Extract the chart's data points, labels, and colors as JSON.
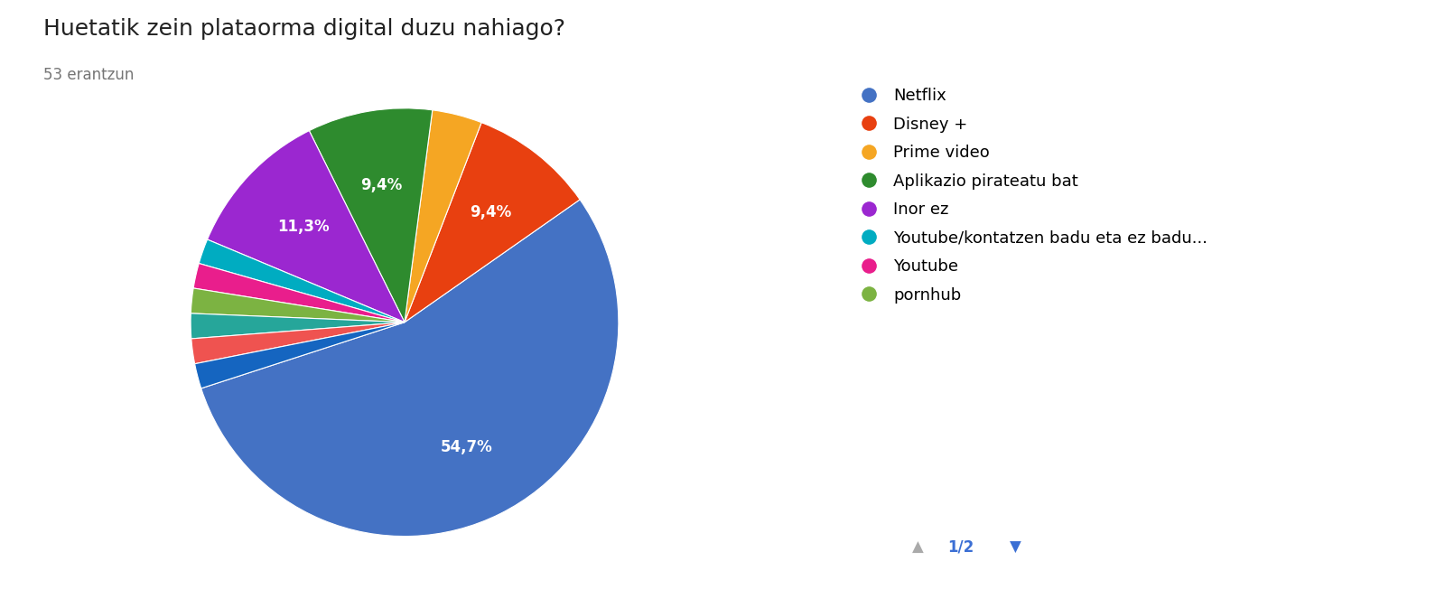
{
  "title": "Huetatik zein plataorma digital duzu nahiago?",
  "subtitle": "53 erantzun",
  "legend_labels": [
    "Netflix",
    "Disney +",
    "Prime video",
    "Aplikazio pirateatu bat",
    "Inor ez",
    "Youtube/kontatzen badu eta ez badu...",
    "Youtube",
    "pornhub"
  ],
  "values": [
    29,
    5,
    2,
    5,
    6,
    1,
    1,
    1,
    1,
    1,
    1
  ],
  "colors": [
    "#4472C4",
    "#E84010",
    "#F5A623",
    "#2E8B2E",
    "#9B27D0",
    "#00ACC1",
    "#E91E8C",
    "#7CB342",
    "#26A69A",
    "#EF5350",
    "#1565C0",
    "#AB47BC"
  ],
  "autopct_map": {
    "0": "54,7%",
    "1": "9,4%",
    "3": "9,4%",
    "4": "11,3%"
  },
  "startangle": 198,
  "background_color": "#ffffff",
  "title_fontsize": 18,
  "subtitle_fontsize": 12,
  "legend_fontsize": 13,
  "label_fontsize": 12
}
